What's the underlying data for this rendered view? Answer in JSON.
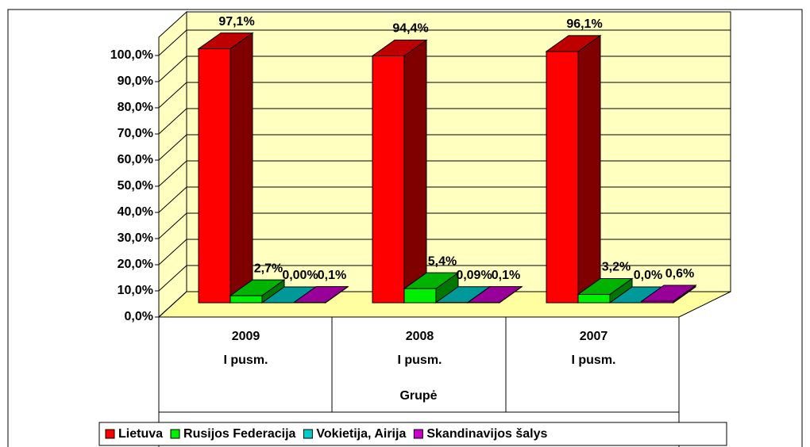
{
  "chart_data": {
    "type": "bar3d",
    "categories": [
      [
        "2009",
        "I pusm."
      ],
      [
        "2008",
        "I pusm."
      ],
      [
        "2007",
        "I pusm."
      ]
    ],
    "x_label": "Grupė",
    "ylim": [
      0,
      100
    ],
    "yticks": [
      {
        "value": 0,
        "label": "0,0%"
      },
      {
        "value": 10,
        "label": "10,0%"
      },
      {
        "value": 20,
        "label": "20,0%"
      },
      {
        "value": 30,
        "label": "30,0%"
      },
      {
        "value": 40,
        "label": "40,0%"
      },
      {
        "value": 50,
        "label": "50,0%"
      },
      {
        "value": 60,
        "label": "60,0%"
      },
      {
        "value": 70,
        "label": "70,0%"
      },
      {
        "value": 80,
        "label": "80,0%"
      },
      {
        "value": 90,
        "label": "90,0%"
      },
      {
        "value": 100,
        "label": "100,0%"
      }
    ],
    "grid": true,
    "legend": "bottom",
    "series": [
      {
        "name": "Lietuva",
        "color": "#ff0000",
        "values": [
          97.1,
          94.4,
          96.1
        ],
        "value_labels": [
          "97,1%",
          "94,4%",
          "96,1%"
        ]
      },
      {
        "name": "Rusijos Federacija",
        "color": "#00ee00",
        "values": [
          2.7,
          5.4,
          3.2
        ],
        "value_labels": [
          "2,7%",
          "5,4%",
          "3,2%"
        ]
      },
      {
        "name": "Vokietija, Airija",
        "color": "#00cccc",
        "values": [
          0.0,
          0.09,
          0.0
        ],
        "value_labels": [
          "0,00%",
          "0,09%",
          "0,0%"
        ]
      },
      {
        "name": "Skandinavijos šalys",
        "color": "#cc00cc",
        "values": [
          0.1,
          0.1,
          0.6
        ],
        "value_labels": [
          "0,1%",
          "0,1%",
          "0,6%"
        ]
      }
    ]
  }
}
